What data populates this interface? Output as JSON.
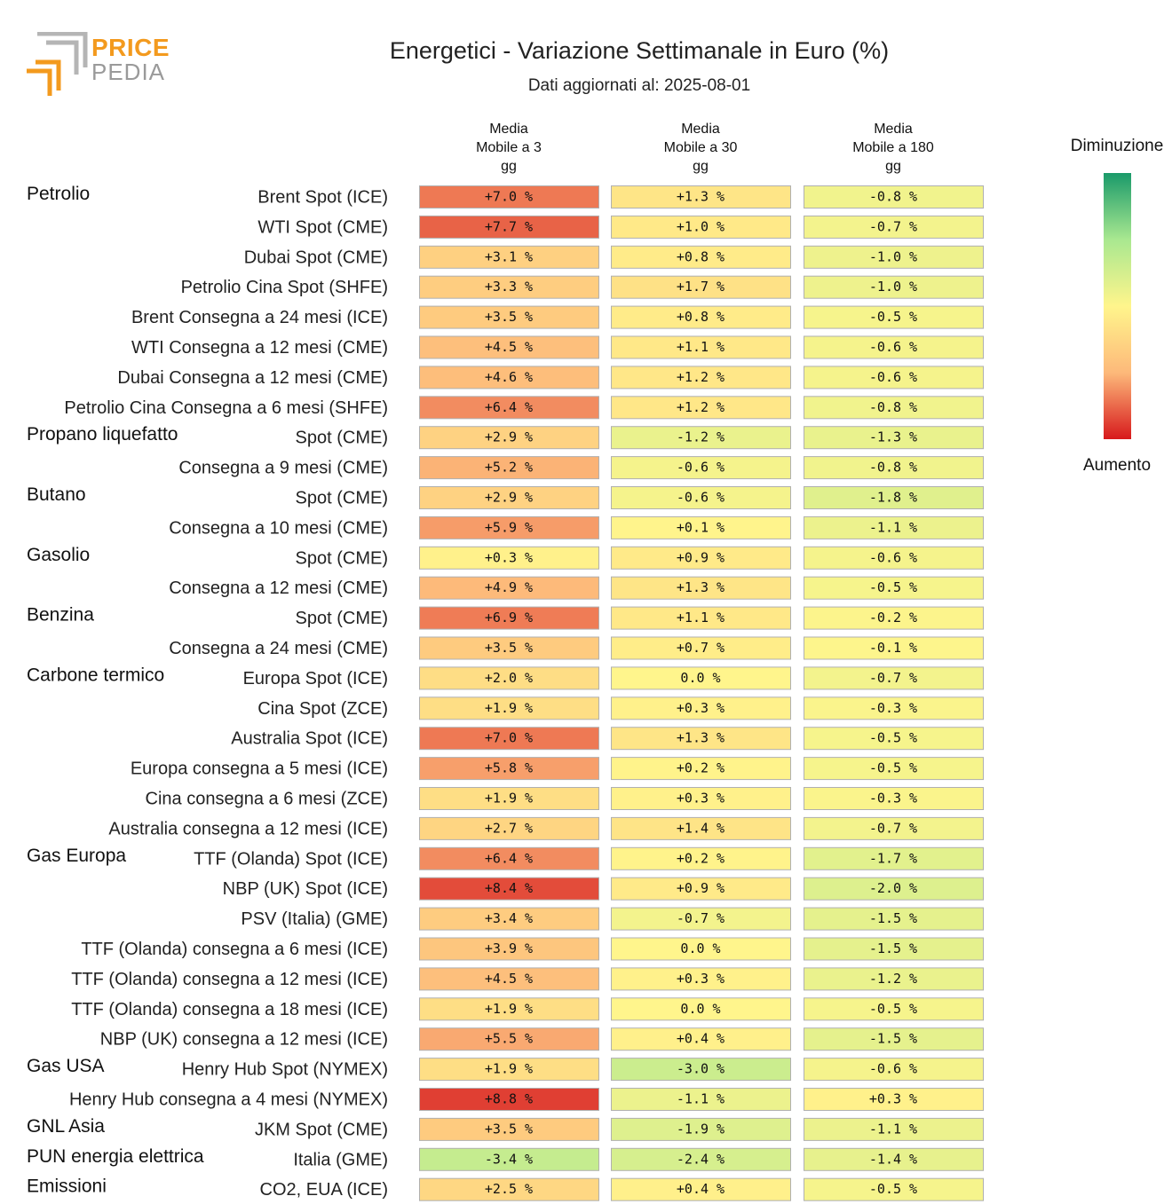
{
  "header": {
    "title": "Energetici - Variazione Settimanale in Euro (%)",
    "subtitle": "Dati aggiornati al: 2025-08-01",
    "logo_line1": "PRICE",
    "logo_line2": "PEDIA"
  },
  "legend": {
    "top_label": "Diminuzione",
    "bottom_label": "Aumento"
  },
  "chart_data": {
    "type": "table",
    "title": "Energetici - Variazione Settimanale in Euro (%)",
    "columns": [
      [
        "Media",
        "Mobile a 3",
        "gg"
      ],
      [
        "Media",
        "Mobile a 30",
        "gg"
      ],
      [
        "Media",
        "Mobile a 180",
        "gg"
      ]
    ],
    "unit": "%",
    "rows": [
      {
        "group": "Petrolio",
        "label": "Brent Spot (ICE)",
        "values": [
          7.0,
          1.3,
          -0.8
        ]
      },
      {
        "group": "",
        "label": "WTI Spot (CME)",
        "values": [
          7.7,
          1.0,
          -0.7
        ]
      },
      {
        "group": "",
        "label": "Dubai Spot (CME)",
        "values": [
          3.1,
          0.8,
          -1.0
        ]
      },
      {
        "group": "",
        "label": "Petrolio Cina Spot (SHFE)",
        "values": [
          3.3,
          1.7,
          -1.0
        ]
      },
      {
        "group": "",
        "label": "Brent Consegna a 24 mesi (ICE)",
        "values": [
          3.5,
          0.8,
          -0.5
        ]
      },
      {
        "group": "",
        "label": "WTI Consegna a 12 mesi (CME)",
        "values": [
          4.5,
          1.1,
          -0.6
        ]
      },
      {
        "group": "",
        "label": "Dubai Consegna a 12 mesi (CME)",
        "values": [
          4.6,
          1.2,
          -0.6
        ]
      },
      {
        "group": "",
        "label": "Petrolio Cina Consegna a 6 mesi (SHFE)",
        "values": [
          6.4,
          1.2,
          -0.8
        ]
      },
      {
        "group": "Propano liquefatto",
        "label": "Spot (CME)",
        "values": [
          2.9,
          -1.2,
          -1.3
        ]
      },
      {
        "group": "",
        "label": "Consegna a 9 mesi (CME)",
        "values": [
          5.2,
          -0.6,
          -0.8
        ]
      },
      {
        "group": "Butano",
        "label": "Spot (CME)",
        "values": [
          2.9,
          -0.6,
          -1.8
        ]
      },
      {
        "group": "",
        "label": "Consegna a 10 mesi (CME)",
        "values": [
          5.9,
          0.1,
          -1.1
        ]
      },
      {
        "group": "Gasolio",
        "label": "Spot (CME)",
        "values": [
          0.3,
          0.9,
          -0.6
        ]
      },
      {
        "group": "",
        "label": "Consegna a 12 mesi (CME)",
        "values": [
          4.9,
          1.3,
          -0.5
        ]
      },
      {
        "group": "Benzina",
        "label": "Spot (CME)",
        "values": [
          6.9,
          1.1,
          -0.2
        ]
      },
      {
        "group": "",
        "label": "Consegna a 24 mesi (CME)",
        "values": [
          3.5,
          0.7,
          -0.1
        ]
      },
      {
        "group": "Carbone termico",
        "label": "Europa Spot (ICE)",
        "values": [
          2.0,
          0.0,
          -0.7
        ]
      },
      {
        "group": "",
        "label": "Cina Spot (ZCE)",
        "values": [
          1.9,
          0.3,
          -0.3
        ]
      },
      {
        "group": "",
        "label": "Australia Spot (ICE)",
        "values": [
          7.0,
          1.3,
          -0.5
        ]
      },
      {
        "group": "",
        "label": "Europa consegna a 5 mesi (ICE)",
        "values": [
          5.8,
          0.2,
          -0.5
        ]
      },
      {
        "group": "",
        "label": "Cina consegna a 6 mesi (ZCE)",
        "values": [
          1.9,
          0.3,
          -0.3
        ]
      },
      {
        "group": "",
        "label": "Australia consegna a 12 mesi (ICE)",
        "values": [
          2.7,
          1.4,
          -0.7
        ]
      },
      {
        "group": "Gas Europa",
        "label": "TTF (Olanda) Spot (ICE)",
        "values": [
          6.4,
          0.2,
          -1.7
        ]
      },
      {
        "group": "",
        "label": "NBP (UK) Spot (ICE)",
        "values": [
          8.4,
          0.9,
          -2.0
        ]
      },
      {
        "group": "",
        "label": "PSV (Italia) (GME)",
        "values": [
          3.4,
          -0.7,
          -1.5
        ]
      },
      {
        "group": "",
        "label": "TTF (Olanda) consegna a 6 mesi (ICE)",
        "values": [
          3.9,
          0.0,
          -1.5
        ]
      },
      {
        "group": "",
        "label": "TTF (Olanda) consegna a 12 mesi (ICE)",
        "values": [
          4.5,
          0.3,
          -1.2
        ]
      },
      {
        "group": "",
        "label": "TTF (Olanda) consegna a 18 mesi (ICE)",
        "values": [
          1.9,
          0.0,
          -0.5
        ]
      },
      {
        "group": "",
        "label": "NBP (UK) consegna a 12 mesi (ICE)",
        "values": [
          5.5,
          0.4,
          -1.5
        ]
      },
      {
        "group": "Gas USA",
        "label": "Henry Hub Spot (NYMEX)",
        "values": [
          1.9,
          -3.0,
          -0.6
        ]
      },
      {
        "group": "",
        "label": "Henry Hub consegna a 4 mesi (NYMEX)",
        "values": [
          8.8,
          -1.1,
          0.3
        ]
      },
      {
        "group": "GNL Asia",
        "label": "JKM Spot (CME)",
        "values": [
          3.5,
          -1.9,
          -1.1
        ]
      },
      {
        "group": "PUN energia elettrica",
        "label": "Italia (GME)",
        "values": [
          -3.4,
          -2.4,
          -1.4
        ]
      },
      {
        "group": "Emissioni",
        "label": "CO2, EUA (ICE)",
        "values": [
          2.5,
          0.4,
          -0.5
        ]
      }
    ],
    "color_scale": {
      "min": -10,
      "max": 10,
      "stops": [
        "#1a9a6a",
        "#a9e890",
        "#fff58c",
        "#fdb97a",
        "#d7191c"
      ]
    }
  }
}
